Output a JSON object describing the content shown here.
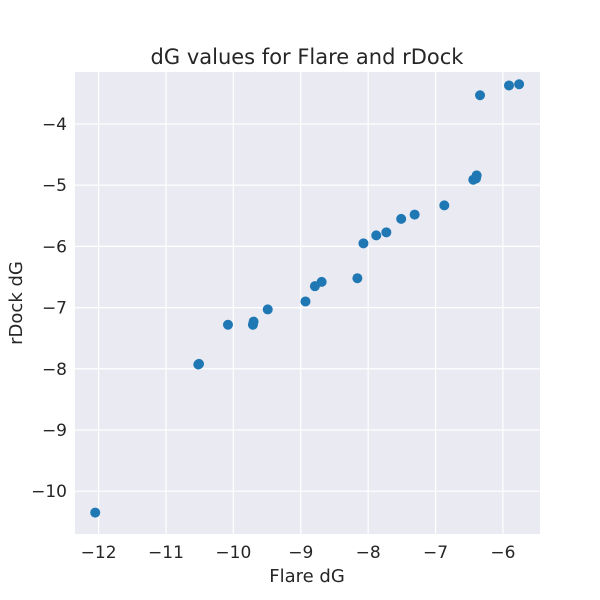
{
  "chart_data": {
    "type": "scatter",
    "title": "dG values for Flare and rDock",
    "xlabel": "Flare dG",
    "ylabel": "rDock dG",
    "xlim": [
      -12.35,
      -5.45
    ],
    "ylim": [
      -10.7,
      -3.15
    ],
    "xticks": [
      -12,
      -11,
      -10,
      -9,
      -8,
      -7,
      -6
    ],
    "yticks": [
      -10,
      -9,
      -8,
      -7,
      -6,
      -5,
      -4
    ],
    "xtick_labels": [
      "−12",
      "−11",
      "−10",
      "−9",
      "−8",
      "−7",
      "−6"
    ],
    "ytick_labels": [
      "−10",
      "−9",
      "−8",
      "−7",
      "−6",
      "−5",
      "−4"
    ],
    "grid": true,
    "background": "#eaeaf2",
    "point_color": "#1f77b4",
    "series": [
      {
        "points": [
          [
            -12.05,
            -10.35
          ],
          [
            -10.52,
            -7.93
          ],
          [
            -10.51,
            -7.92
          ],
          [
            -10.08,
            -7.28
          ],
          [
            -9.71,
            -7.28
          ],
          [
            -9.7,
            -7.23
          ],
          [
            -9.49,
            -7.03
          ],
          [
            -8.93,
            -6.9
          ],
          [
            -8.79,
            -6.65
          ],
          [
            -8.69,
            -6.58
          ],
          [
            -8.16,
            -6.52
          ],
          [
            -8.07,
            -5.95
          ],
          [
            -7.88,
            -5.82
          ],
          [
            -7.73,
            -5.77
          ],
          [
            -7.51,
            -5.55
          ],
          [
            -7.31,
            -5.48
          ],
          [
            -6.87,
            -5.33
          ],
          [
            -6.44,
            -4.91
          ],
          [
            -6.4,
            -4.89
          ],
          [
            -6.39,
            -4.84
          ],
          [
            -6.34,
            -3.53
          ],
          [
            -5.91,
            -3.37
          ],
          [
            -5.76,
            -3.35
          ]
        ]
      }
    ]
  }
}
